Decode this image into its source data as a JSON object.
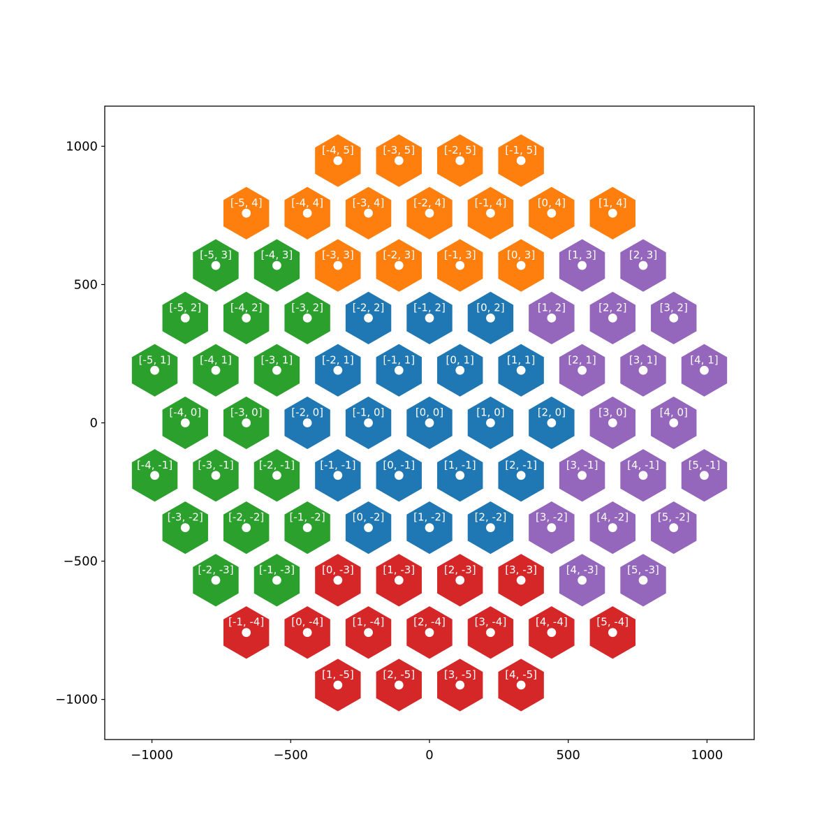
{
  "chart_data": {
    "type": "scatter",
    "title": "",
    "xlabel": "",
    "ylabel": "",
    "xlim": [
      -1170,
      1170
    ],
    "ylim": [
      -1145,
      1145
    ],
    "xticks": [
      {
        "value": -1000,
        "label": "−1000"
      },
      {
        "value": -500,
        "label": "−500"
      },
      {
        "value": 0,
        "label": "0"
      },
      {
        "value": 500,
        "label": "500"
      },
      {
        "value": 1000,
        "label": "1000"
      }
    ],
    "yticks": [
      {
        "value": -1000,
        "label": "−1000"
      },
      {
        "value": -500,
        "label": "−500"
      },
      {
        "value": 0,
        "label": "0"
      },
      {
        "value": 500,
        "label": "500"
      },
      {
        "value": 1000,
        "label": "1000"
      }
    ],
    "grid": false,
    "legend": "none",
    "hex_size": 95,
    "point_radius": 16,
    "colors": {
      "blue": "#1f77b4",
      "orange": "#ff7f0e",
      "green": "#2ca02c",
      "purple": "#9467bd",
      "red": "#d62728",
      "point": "#ffffff",
      "label": "#ffffff"
    },
    "cells": [
      {
        "q": -4,
        "r": 5,
        "label": "[-4, 5]",
        "color": "orange",
        "x": -330,
        "y": 948
      },
      {
        "q": -3,
        "r": 5,
        "label": "[-3, 5]",
        "color": "orange",
        "x": -110,
        "y": 948
      },
      {
        "q": -2,
        "r": 5,
        "label": "[-2, 5]",
        "color": "orange",
        "x": 110,
        "y": 948
      },
      {
        "q": -1,
        "r": 5,
        "label": "[-1, 5]",
        "color": "orange",
        "x": 330,
        "y": 948
      },
      {
        "q": -5,
        "r": 4,
        "label": "[-5, 4]",
        "color": "orange",
        "x": -660,
        "y": 758
      },
      {
        "q": -4,
        "r": 4,
        "label": "[-4, 4]",
        "color": "orange",
        "x": -440,
        "y": 758
      },
      {
        "q": -3,
        "r": 4,
        "label": "[-3, 4]",
        "color": "orange",
        "x": -220,
        "y": 758
      },
      {
        "q": -2,
        "r": 4,
        "label": "[-2, 4]",
        "color": "orange",
        "x": 0,
        "y": 758
      },
      {
        "q": -1,
        "r": 4,
        "label": "[-1, 4]",
        "color": "orange",
        "x": 220,
        "y": 758
      },
      {
        "q": 0,
        "r": 4,
        "label": "[0, 4]",
        "color": "orange",
        "x": 440,
        "y": 758
      },
      {
        "q": 1,
        "r": 4,
        "label": "[1, 4]",
        "color": "orange",
        "x": 660,
        "y": 758
      },
      {
        "q": -5,
        "r": 3,
        "label": "[-5, 3]",
        "color": "green",
        "x": -770,
        "y": 569
      },
      {
        "q": -4,
        "r": 3,
        "label": "[-4, 3]",
        "color": "green",
        "x": -550,
        "y": 569
      },
      {
        "q": -3,
        "r": 3,
        "label": "[-3, 3]",
        "color": "orange",
        "x": -330,
        "y": 569
      },
      {
        "q": -2,
        "r": 3,
        "label": "[-2, 3]",
        "color": "orange",
        "x": -110,
        "y": 569
      },
      {
        "q": -1,
        "r": 3,
        "label": "[-1, 3]",
        "color": "orange",
        "x": 110,
        "y": 569
      },
      {
        "q": 0,
        "r": 3,
        "label": "[0, 3]",
        "color": "orange",
        "x": 330,
        "y": 569
      },
      {
        "q": 1,
        "r": 3,
        "label": "[1, 3]",
        "color": "purple",
        "x": 550,
        "y": 569
      },
      {
        "q": 2,
        "r": 3,
        "label": "[2, 3]",
        "color": "purple",
        "x": 770,
        "y": 569
      },
      {
        "q": -5,
        "r": 2,
        "label": "[-5, 2]",
        "color": "green",
        "x": -880,
        "y": 379
      },
      {
        "q": -4,
        "r": 2,
        "label": "[-4, 2]",
        "color": "green",
        "x": -660,
        "y": 379
      },
      {
        "q": -3,
        "r": 2,
        "label": "[-3, 2]",
        "color": "green",
        "x": -440,
        "y": 379
      },
      {
        "q": -2,
        "r": 2,
        "label": "[-2, 2]",
        "color": "blue",
        "x": -220,
        "y": 379
      },
      {
        "q": -1,
        "r": 2,
        "label": "[-1, 2]",
        "color": "blue",
        "x": 0,
        "y": 379
      },
      {
        "q": 0,
        "r": 2,
        "label": "[0, 2]",
        "color": "blue",
        "x": 220,
        "y": 379
      },
      {
        "q": 1,
        "r": 2,
        "label": "[1, 2]",
        "color": "purple",
        "x": 440,
        "y": 379
      },
      {
        "q": 2,
        "r": 2,
        "label": "[2, 2]",
        "color": "purple",
        "x": 660,
        "y": 379
      },
      {
        "q": 3,
        "r": 2,
        "label": "[3, 2]",
        "color": "purple",
        "x": 880,
        "y": 379
      },
      {
        "q": -5,
        "r": 1,
        "label": "[-5, 1]",
        "color": "green",
        "x": -990,
        "y": 190
      },
      {
        "q": -4,
        "r": 1,
        "label": "[-4, 1]",
        "color": "green",
        "x": -770,
        "y": 190
      },
      {
        "q": -3,
        "r": 1,
        "label": "[-3, 1]",
        "color": "green",
        "x": -550,
        "y": 190
      },
      {
        "q": -2,
        "r": 1,
        "label": "[-2, 1]",
        "color": "blue",
        "x": -330,
        "y": 190
      },
      {
        "q": -1,
        "r": 1,
        "label": "[-1, 1]",
        "color": "blue",
        "x": -110,
        "y": 190
      },
      {
        "q": 0,
        "r": 1,
        "label": "[0, 1]",
        "color": "blue",
        "x": 110,
        "y": 190
      },
      {
        "q": 1,
        "r": 1,
        "label": "[1, 1]",
        "color": "blue",
        "x": 330,
        "y": 190
      },
      {
        "q": 2,
        "r": 1,
        "label": "[2, 1]",
        "color": "purple",
        "x": 550,
        "y": 190
      },
      {
        "q": 3,
        "r": 1,
        "label": "[3, 1]",
        "color": "purple",
        "x": 770,
        "y": 190
      },
      {
        "q": 4,
        "r": 1,
        "label": "[4, 1]",
        "color": "purple",
        "x": 990,
        "y": 190
      },
      {
        "q": -4,
        "r": 0,
        "label": "[-4, 0]",
        "color": "green",
        "x": -880,
        "y": 0
      },
      {
        "q": -3,
        "r": 0,
        "label": "[-3, 0]",
        "color": "green",
        "x": -660,
        "y": 0
      },
      {
        "q": -2,
        "r": 0,
        "label": "[-2, 0]",
        "color": "blue",
        "x": -440,
        "y": 0
      },
      {
        "q": -1,
        "r": 0,
        "label": "[-1, 0]",
        "color": "blue",
        "x": -220,
        "y": 0
      },
      {
        "q": 0,
        "r": 0,
        "label": "[0, 0]",
        "color": "blue",
        "x": 0,
        "y": 0
      },
      {
        "q": 1,
        "r": 0,
        "label": "[1, 0]",
        "color": "blue",
        "x": 220,
        "y": 0
      },
      {
        "q": 2,
        "r": 0,
        "label": "[2, 0]",
        "color": "blue",
        "x": 440,
        "y": 0
      },
      {
        "q": 3,
        "r": 0,
        "label": "[3, 0]",
        "color": "purple",
        "x": 660,
        "y": 0
      },
      {
        "q": 4,
        "r": 0,
        "label": "[4, 0]",
        "color": "purple",
        "x": 880,
        "y": 0
      },
      {
        "q": -4,
        "r": -1,
        "label": "[-4, -1]",
        "color": "green",
        "x": -990,
        "y": -190
      },
      {
        "q": -3,
        "r": -1,
        "label": "[-3, -1]",
        "color": "green",
        "x": -770,
        "y": -190
      },
      {
        "q": -2,
        "r": -1,
        "label": "[-2, -1]",
        "color": "green",
        "x": -550,
        "y": -190
      },
      {
        "q": -1,
        "r": -1,
        "label": "[-1, -1]",
        "color": "blue",
        "x": -330,
        "y": -190
      },
      {
        "q": 0,
        "r": -1,
        "label": "[0, -1]",
        "color": "blue",
        "x": -110,
        "y": -190
      },
      {
        "q": 1,
        "r": -1,
        "label": "[1, -1]",
        "color": "blue",
        "x": 110,
        "y": -190
      },
      {
        "q": 2,
        "r": -1,
        "label": "[2, -1]",
        "color": "blue",
        "x": 330,
        "y": -190
      },
      {
        "q": 3,
        "r": -1,
        "label": "[3, -1]",
        "color": "purple",
        "x": 550,
        "y": -190
      },
      {
        "q": 4,
        "r": -1,
        "label": "[4, -1]",
        "color": "purple",
        "x": 770,
        "y": -190
      },
      {
        "q": 5,
        "r": -1,
        "label": "[5, -1]",
        "color": "purple",
        "x": 990,
        "y": -190
      },
      {
        "q": -3,
        "r": -2,
        "label": "[-3, -2]",
        "color": "green",
        "x": -880,
        "y": -379
      },
      {
        "q": -2,
        "r": -2,
        "label": "[-2, -2]",
        "color": "green",
        "x": -660,
        "y": -379
      },
      {
        "q": -1,
        "r": -2,
        "label": "[-1, -2]",
        "color": "green",
        "x": -440,
        "y": -379
      },
      {
        "q": 0,
        "r": -2,
        "label": "[0, -2]",
        "color": "blue",
        "x": -220,
        "y": -379
      },
      {
        "q": 1,
        "r": -2,
        "label": "[1, -2]",
        "color": "blue",
        "x": 0,
        "y": -379
      },
      {
        "q": 2,
        "r": -2,
        "label": "[2, -2]",
        "color": "blue",
        "x": 220,
        "y": -379
      },
      {
        "q": 3,
        "r": -2,
        "label": "[3, -2]",
        "color": "purple",
        "x": 440,
        "y": -379
      },
      {
        "q": 4,
        "r": -2,
        "label": "[4, -2]",
        "color": "purple",
        "x": 660,
        "y": -379
      },
      {
        "q": 5,
        "r": -2,
        "label": "[5, -2]",
        "color": "purple",
        "x": 880,
        "y": -379
      },
      {
        "q": -2,
        "r": -3,
        "label": "[-2, -3]",
        "color": "green",
        "x": -770,
        "y": -569
      },
      {
        "q": -1,
        "r": -3,
        "label": "[-1, -3]",
        "color": "green",
        "x": -550,
        "y": -569
      },
      {
        "q": 0,
        "r": -3,
        "label": "[0, -3]",
        "color": "red",
        "x": -330,
        "y": -569
      },
      {
        "q": 1,
        "r": -3,
        "label": "[1, -3]",
        "color": "red",
        "x": -110,
        "y": -569
      },
      {
        "q": 2,
        "r": -3,
        "label": "[2, -3]",
        "color": "red",
        "x": 110,
        "y": -569
      },
      {
        "q": 3,
        "r": -3,
        "label": "[3, -3]",
        "color": "red",
        "x": 330,
        "y": -569
      },
      {
        "q": 4,
        "r": -3,
        "label": "[4, -3]",
        "color": "purple",
        "x": 550,
        "y": -569
      },
      {
        "q": 5,
        "r": -3,
        "label": "[5, -3]",
        "color": "purple",
        "x": 770,
        "y": -569
      },
      {
        "q": -1,
        "r": -4,
        "label": "[-1, -4]",
        "color": "red",
        "x": -660,
        "y": -758
      },
      {
        "q": 0,
        "r": -4,
        "label": "[0, -4]",
        "color": "red",
        "x": -440,
        "y": -758
      },
      {
        "q": 1,
        "r": -4,
        "label": "[1, -4]",
        "color": "red",
        "x": -220,
        "y": -758
      },
      {
        "q": 2,
        "r": -4,
        "label": "[2, -4]",
        "color": "red",
        "x": 0,
        "y": -758
      },
      {
        "q": 3,
        "r": -4,
        "label": "[3, -4]",
        "color": "red",
        "x": 220,
        "y": -758
      },
      {
        "q": 4,
        "r": -4,
        "label": "[4, -4]",
        "color": "red",
        "x": 440,
        "y": -758
      },
      {
        "q": 5,
        "r": -4,
        "label": "[5, -4]",
        "color": "red",
        "x": 660,
        "y": -758
      },
      {
        "q": 1,
        "r": -5,
        "label": "[1, -5]",
        "color": "red",
        "x": -330,
        "y": -948
      },
      {
        "q": 2,
        "r": -5,
        "label": "[2, -5]",
        "color": "red",
        "x": -110,
        "y": -948
      },
      {
        "q": 3,
        "r": -5,
        "label": "[3, -5]",
        "color": "red",
        "x": 110,
        "y": -948
      },
      {
        "q": 4,
        "r": -5,
        "label": "[4, -5]",
        "color": "red",
        "x": 330,
        "y": -948
      }
    ]
  }
}
